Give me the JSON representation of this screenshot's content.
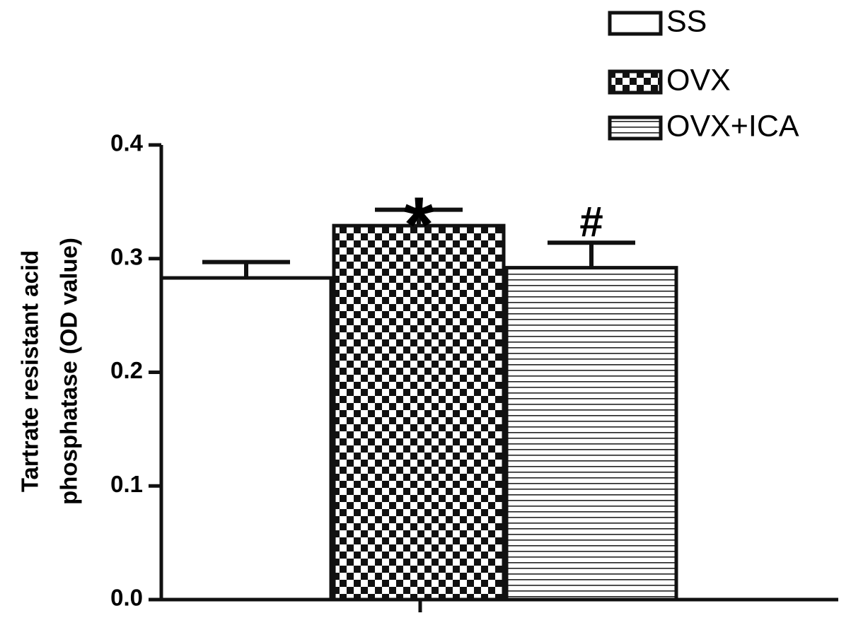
{
  "chart_data": {
    "type": "bar",
    "y_label": [
      "Tartrate resistant acid",
      "phosphatase (OD value)"
    ],
    "categories": [
      null
    ],
    "series": [
      {
        "name": "SS",
        "color": "#ffffff",
        "pattern": "none",
        "values": [
          0.283
        ],
        "errors": [
          0.014
        ]
      },
      {
        "name": "OVX",
        "color": "#ffffff",
        "pattern": "checker",
        "values": [
          0.329
        ],
        "errors": [
          0.014
        ],
        "label": "*"
      },
      {
        "name": "OVX+ICA",
        "color": "#ffffff",
        "pattern": "hlines",
        "values": [
          0.292
        ],
        "errors": [
          0.022
        ],
        "label": "#"
      }
    ],
    "ylim": [
      0,
      0.4
    ],
    "yticks": [
      {
        "value": 0,
        "label": "0.0"
      },
      0.1,
      0.2,
      0.3,
      0.4
    ],
    "legend": "top-right"
  }
}
